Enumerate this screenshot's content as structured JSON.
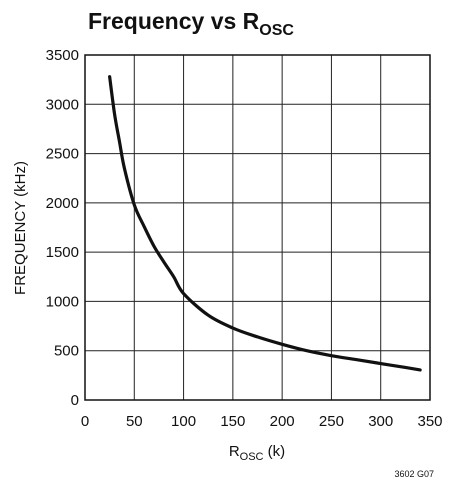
{
  "chart_data": {
    "type": "line",
    "title": {
      "main": "Frequency vs R",
      "sub": "OSC"
    },
    "xlabel": {
      "main": "R",
      "sub": "OSC",
      "unit": " (k)"
    },
    "ylabel": "FREQUENCY (kHz)",
    "xlim": [
      0,
      350
    ],
    "ylim": [
      0,
      3500
    ],
    "x_ticks": [
      0,
      50,
      100,
      150,
      200,
      250,
      300,
      350
    ],
    "y_ticks": [
      0,
      500,
      1000,
      1500,
      2000,
      2500,
      3000,
      3500
    ],
    "grid": true,
    "series": [
      {
        "x": [
          25,
          30,
          35,
          40,
          50,
          60,
          70,
          80,
          90,
          100,
          125,
          150,
          175,
          200,
          225,
          250,
          275,
          300,
          325,
          340
        ],
        "y": [
          3280,
          2900,
          2620,
          2350,
          1980,
          1760,
          1560,
          1400,
          1250,
          1080,
          860,
          730,
          640,
          565,
          500,
          450,
          410,
          370,
          330,
          305
        ]
      }
    ],
    "footnote": "3602 G07"
  }
}
